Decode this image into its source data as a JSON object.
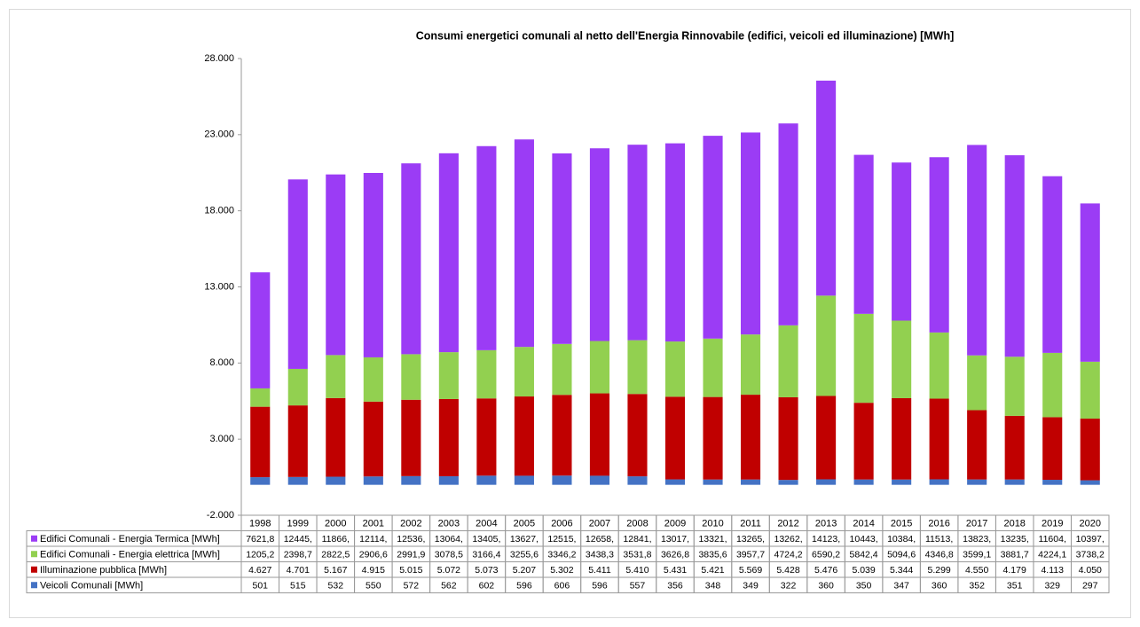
{
  "chart_data": {
    "type": "stacked_bar",
    "title": "Consumi energetici comunali al netto dell'Energia Rinnovabile (edifici, veicoli ed illuminazione) [MWh]",
    "categories": [
      "1998",
      "1999",
      "2000",
      "2001",
      "2002",
      "2003",
      "2004",
      "2005",
      "2006",
      "2007",
      "2008",
      "2009",
      "2010",
      "2011",
      "2012",
      "2013",
      "2014",
      "2015",
      "2016",
      "2017",
      "2018",
      "2019",
      "2020"
    ],
    "ylim": [
      -2000,
      28000
    ],
    "yticks": [
      {
        "value": -2000,
        "label": "-2.000"
      },
      {
        "value": 3000,
        "label": "3.000"
      },
      {
        "value": 8000,
        "label": "8.000"
      },
      {
        "value": 13000,
        "label": "13.000"
      },
      {
        "value": 18000,
        "label": "18.000"
      },
      {
        "value": 23000,
        "label": "23.000"
      },
      {
        "value": 28000,
        "label": "28.000"
      }
    ],
    "grid": false,
    "series": [
      {
        "name": "Veicoli Comunali [MWh]",
        "color": "#4472c4",
        "values": [
          501,
          515,
          532,
          550,
          572,
          562,
          602,
          596,
          606,
          596,
          557,
          356,
          348,
          349,
          322,
          360,
          350,
          347,
          360,
          352,
          351,
          329,
          297
        ]
      },
      {
        "name": "Illuminazione pubblica [MWh]",
        "color": "#c00000",
        "values": [
          4627,
          4701,
          5167,
          4915,
          5015,
          5072,
          5073,
          5207,
          5302,
          5411,
          5410,
          5431,
          5421,
          5569,
          5428,
          5476,
          5039,
          5344,
          5299,
          4550,
          4179,
          4113,
          4050
        ],
        "value_labels": [
          "4.627",
          "4.701",
          "5.167",
          "4.915",
          "5.015",
          "5.072",
          "5.073",
          "5.207",
          "5.302",
          "5.411",
          "5.410",
          "5.431",
          "5.421",
          "5.569",
          "5.428",
          "5.476",
          "5.039",
          "5.344",
          "5.299",
          "4.550",
          "4.179",
          "4.113",
          "4.050"
        ]
      },
      {
        "name": "Edifici Comunali - Energia elettrica [MWh]",
        "color": "#92d050",
        "values": [
          1205.2,
          2398.7,
          2822.5,
          2906.6,
          2991.9,
          3078.5,
          3166.4,
          3255.6,
          3346.2,
          3438.3,
          3531.8,
          3626.8,
          3835.6,
          3957.7,
          4724.2,
          6590.2,
          5842.4,
          5094.6,
          4346.8,
          3599.1,
          3881.7,
          4224.1,
          3738.2
        ],
        "value_labels": [
          "1205,2",
          "2398,7",
          "2822,5",
          "2906,6",
          "2991,9",
          "3078,5",
          "3166,4",
          "3255,6",
          "3346,2",
          "3438,3",
          "3531,8",
          "3626,8",
          "3835,6",
          "3957,7",
          "4724,2",
          "6590,2",
          "5842,4",
          "5094,6",
          "4346,8",
          "3599,1",
          "3881,7",
          "4224,1",
          "3738,2"
        ]
      },
      {
        "name": "Edifici Comunali - Energia Termica [MWh]",
        "color": "#9b3cf5",
        "values": [
          7621.8,
          12445,
          11866,
          12114,
          12536,
          13064,
          13405,
          13627,
          12515,
          12658,
          12841,
          13017,
          13321,
          13265,
          13262,
          14123,
          10443,
          10384,
          11513,
          13823,
          13235,
          11604,
          10397
        ],
        "value_labels": [
          "7621,8",
          "12445,",
          "11866,",
          "12114,",
          "12536,",
          "13064,",
          "13405,",
          "13627,",
          "12515,",
          "12658,",
          "12841,",
          "13017,",
          "13321,",
          "13265,",
          "13262,",
          "14123,",
          "10443,",
          "10384,",
          "11513,",
          "13823,",
          "13235,",
          "11604,",
          "10397,"
        ]
      }
    ]
  }
}
